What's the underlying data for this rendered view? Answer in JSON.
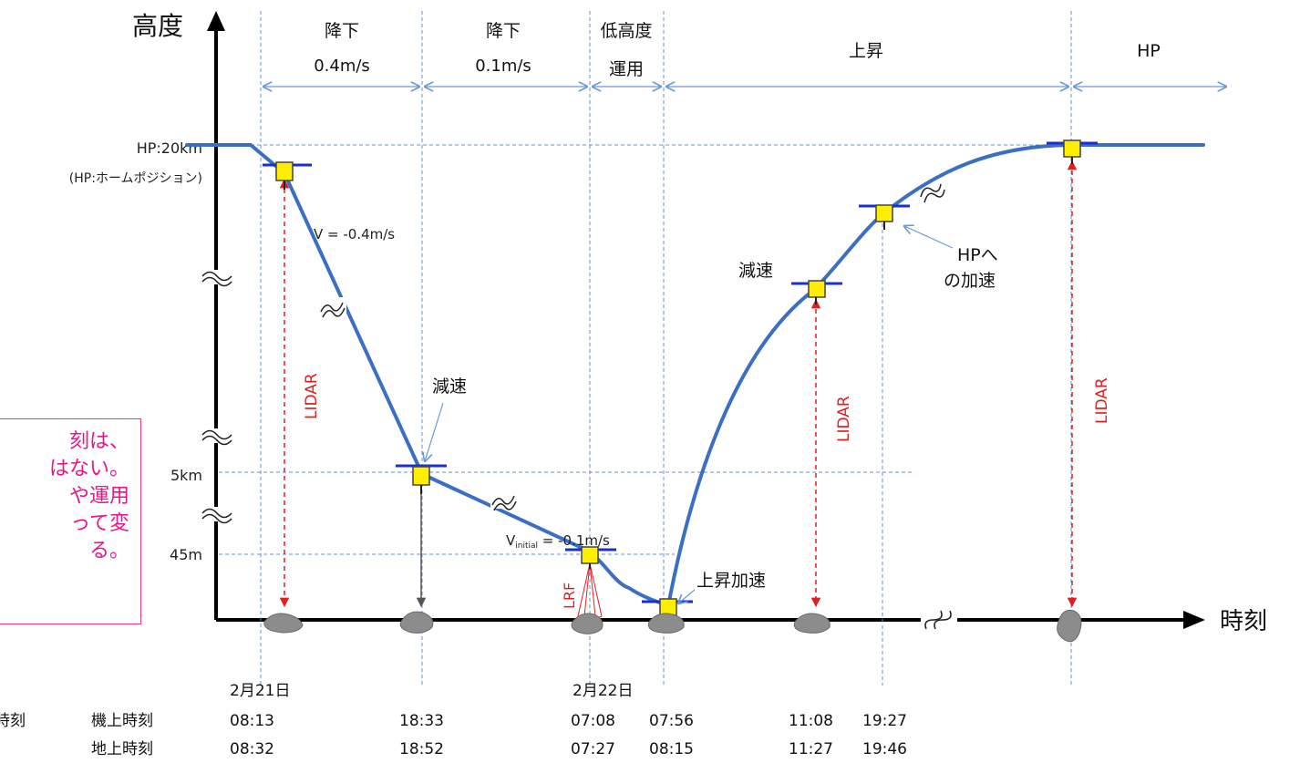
{
  "axes": {
    "y_label": "高度",
    "x_label": "時刻"
  },
  "y_levels": {
    "hp": "HP:20km",
    "hp_note": "(HP:ホームポジション)",
    "km5": "5km",
    "m45": "45m"
  },
  "phases": [
    {
      "line1": "降下",
      "line2": "0.4m/s"
    },
    {
      "line1": "降下",
      "line2": "0.1m/s"
    },
    {
      "line1": "低高度",
      "line2": "運用"
    },
    {
      "line1": "上昇",
      "line2": ""
    },
    {
      "line1": "HP",
      "line2": ""
    }
  ],
  "annotations": {
    "v1": "V = -0.4m/s",
    "v2_pre": "V",
    "v2_sub": "initial",
    "v2_post": " = -0.1m/s",
    "decel_1": "減速",
    "decel_2": "減速",
    "ascent_accel": "上昇加速",
    "hp_accel_1": "HPへ",
    "hp_accel_2": "の加速",
    "lidar": "LIDAR",
    "lrf": "LRF"
  },
  "note": {
    "lines": [
      "刻は、",
      "はない。",
      "や運用",
      "って変",
      "る。"
    ]
  },
  "dates": {
    "d1": "2月21日",
    "d2": "2月22日"
  },
  "time_rows": {
    "left_header": "時刻",
    "onboard_label": "機上時刻",
    "ground_label": "地上時刻",
    "onboard": [
      "08:13",
      "18:33",
      "07:08",
      "07:56",
      "11:08",
      "19:27"
    ],
    "ground": [
      "08:32",
      "18:52",
      "07:27",
      "08:15",
      "11:27",
      "19:46"
    ]
  },
  "colors": {
    "trajectory": "#3a6fc4",
    "arrow_blue": "#6a9ad8",
    "lidar_red": "#e02020",
    "note_pink": "#e8158c",
    "probe_yellow": "#ffee00",
    "rock_gray": "#8c8c8c"
  }
}
